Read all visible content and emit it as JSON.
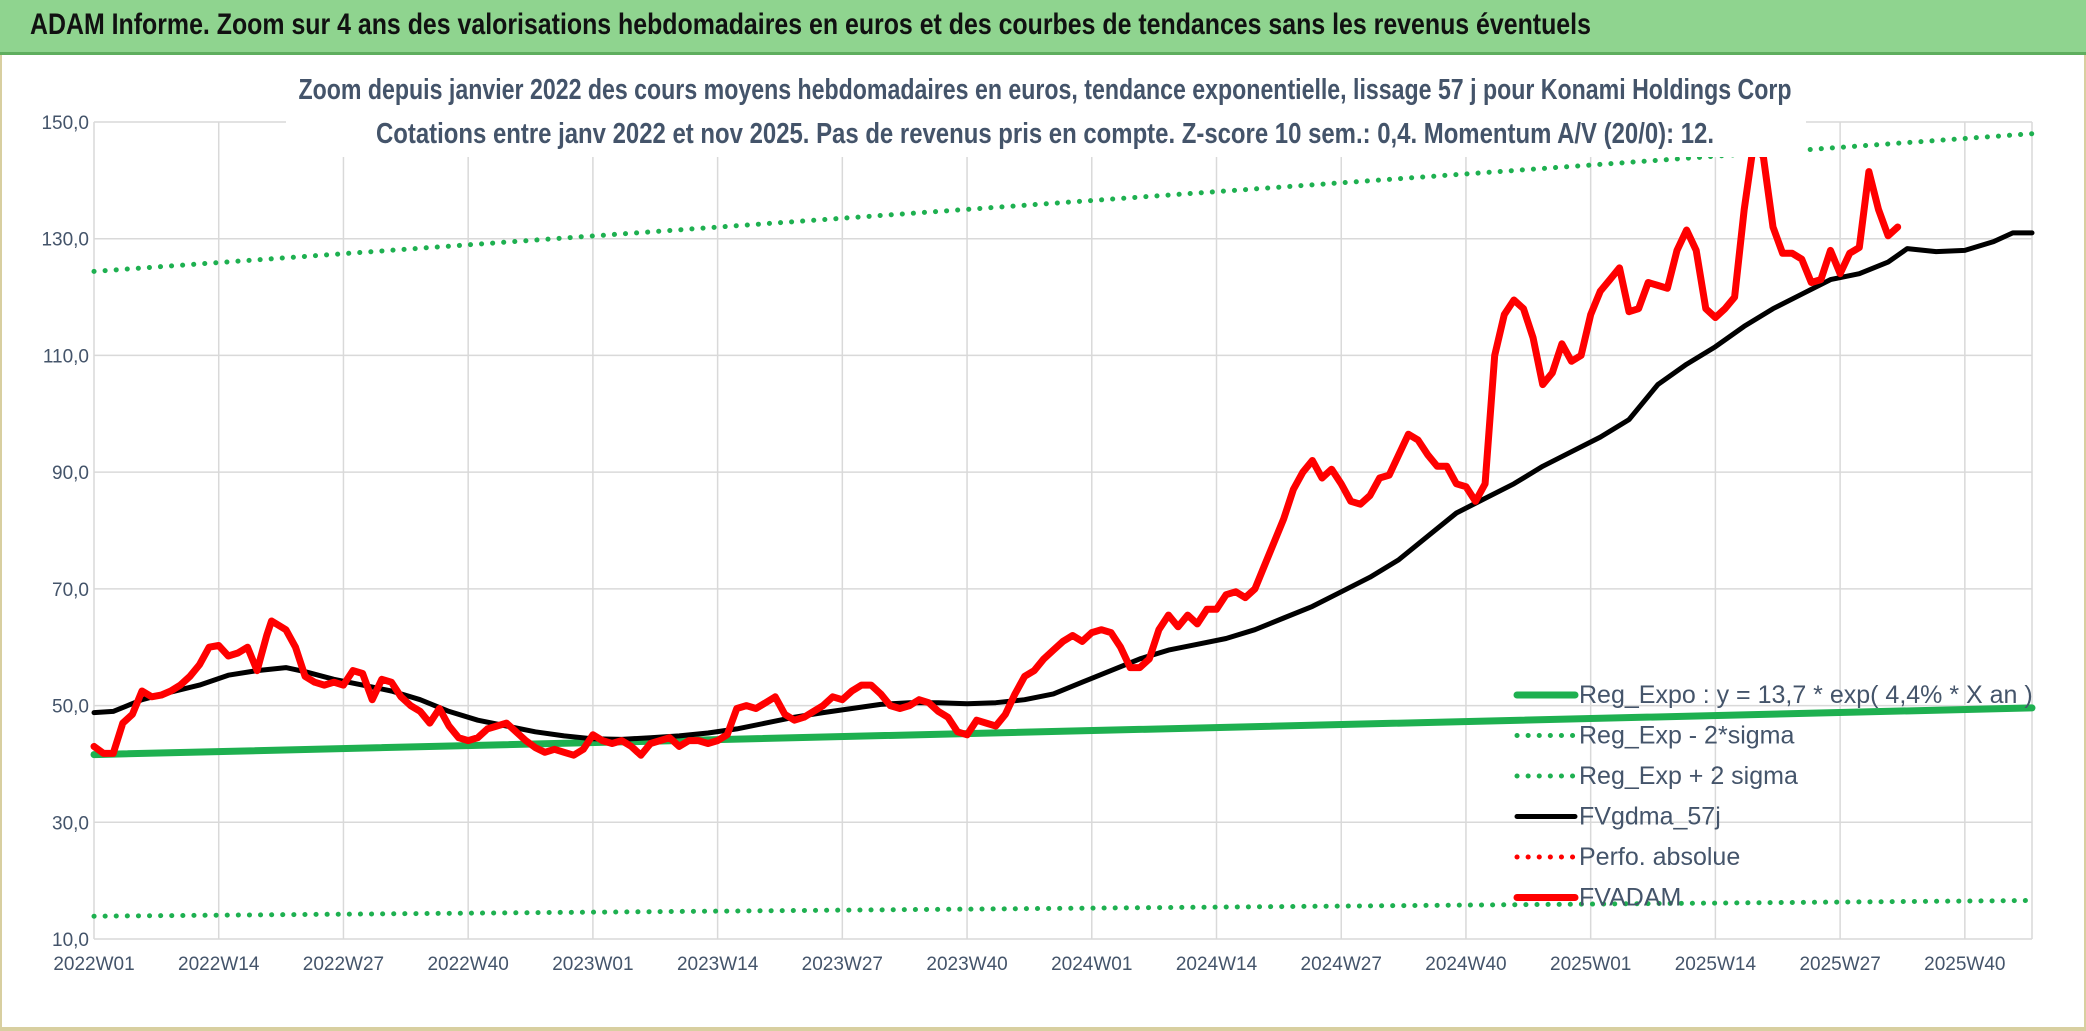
{
  "banner": {
    "title": "ADAM Informe. Zoom sur 4 ans des valorisations hebdomadaires en euros et des courbes de tendances sans les revenus éventuels"
  },
  "chart_data": {
    "type": "line",
    "title": "Zoom depuis janvier 2022 des cours moyens hebdomadaires en euros, tendance exponentielle, lissage 57 j pour Konami Holdings Corp",
    "subtitle": "Cotations entre janv 2022 et nov 2025. Pas de revenus pris en compte. Z-score 10 sem.: 0,4. Momentum A/V (20/0): 12.",
    "x_tick_labels": [
      "2022W01",
      "2022W14",
      "2022W27",
      "2022W40",
      "2023W01",
      "2023W14",
      "2023W27",
      "2023W40",
      "2024W01",
      "2024W14",
      "2024W27",
      "2024W40",
      "2025W01",
      "2025W14",
      "2025W27",
      "2025W40"
    ],
    "y_tick_labels": [
      "10,0",
      "30,0",
      "50,0",
      "70,0",
      "90,0",
      "110,0",
      "130,0",
      "150,0"
    ],
    "ylim": [
      10,
      150
    ],
    "grid": true,
    "legend_position": "bottom-right",
    "x_range_weeks": [
      0,
      202
    ],
    "series": [
      {
        "name": "Reg_Expo : y = 13,7 * exp( 4,4% *  X  an )",
        "color": "#1eb050",
        "style": "solid-thick",
        "points": [
          [
            0,
            41.6
          ],
          [
            202,
            49.6
          ]
        ]
      },
      {
        "name": "Reg_Exp - 2*sigma",
        "color": "#1eb050",
        "style": "dotted",
        "points": [
          [
            0,
            13.9
          ],
          [
            202,
            16.6
          ]
        ]
      },
      {
        "name": "Reg_Exp + 2 sigma",
        "color": "#1eb050",
        "style": "dotted",
        "points": [
          [
            0,
            124.4
          ],
          [
            202,
            148.0
          ]
        ]
      },
      {
        "name": "FVgdma_57j",
        "color": "#000000",
        "style": "solid",
        "points": [
          [
            0,
            48.8
          ],
          [
            2,
            49
          ],
          [
            5,
            51
          ],
          [
            8,
            52.3
          ],
          [
            11,
            53.5
          ],
          [
            14,
            55.2
          ],
          [
            17,
            56
          ],
          [
            20,
            56.5
          ],
          [
            22,
            55.8
          ],
          [
            25,
            54.5
          ],
          [
            28,
            53.5
          ],
          [
            31,
            52.5
          ],
          [
            34,
            51
          ],
          [
            37,
            49
          ],
          [
            40,
            47.5
          ],
          [
            43,
            46.5
          ],
          [
            46,
            45.5
          ],
          [
            49,
            44.8
          ],
          [
            52,
            44.3
          ],
          [
            55,
            44.2
          ],
          [
            58,
            44.5
          ],
          [
            61,
            44.8
          ],
          [
            64,
            45.3
          ],
          [
            67,
            46
          ],
          [
            70,
            47
          ],
          [
            73,
            48
          ],
          [
            76,
            48.8
          ],
          [
            79,
            49.5
          ],
          [
            82,
            50.2
          ],
          [
            85,
            50.5
          ],
          [
            88,
            50.5
          ],
          [
            91,
            50.3
          ],
          [
            94,
            50.5
          ],
          [
            97,
            51
          ],
          [
            100,
            52
          ],
          [
            103,
            54
          ],
          [
            106,
            56
          ],
          [
            109,
            58
          ],
          [
            112,
            59.5
          ],
          [
            115,
            60.5
          ],
          [
            118,
            61.5
          ],
          [
            121,
            63
          ],
          [
            124,
            65
          ],
          [
            127,
            67
          ],
          [
            130,
            69.5
          ],
          [
            133,
            72
          ],
          [
            136,
            75
          ],
          [
            139,
            79
          ],
          [
            142,
            83
          ],
          [
            145,
            85.5
          ],
          [
            148,
            88
          ],
          [
            151,
            91
          ],
          [
            154,
            93.5
          ],
          [
            157,
            96
          ],
          [
            160,
            99
          ],
          [
            163,
            105
          ],
          [
            166,
            108.5
          ],
          [
            169,
            111.5
          ],
          [
            172,
            115
          ],
          [
            175,
            118
          ],
          [
            178,
            120.5
          ],
          [
            181,
            123
          ],
          [
            184,
            124
          ],
          [
            187,
            126
          ],
          [
            189,
            128.3
          ],
          [
            192,
            127.8
          ],
          [
            195,
            128
          ],
          [
            198,
            129.5
          ],
          [
            200,
            131
          ],
          [
            202,
            131
          ]
        ]
      },
      {
        "name": "Perfo. absolue",
        "color": "#ff0000",
        "style": "dotted",
        "points": []
      },
      {
        "name": "FVADAM",
        "color": "#ff0000",
        "style": "solid-thick",
        "points": [
          [
            0,
            43
          ],
          [
            1,
            41.8
          ],
          [
            2,
            41.8
          ],
          [
            3,
            47
          ],
          [
            4,
            48.5
          ],
          [
            5,
            52.5
          ],
          [
            6,
            51.5
          ],
          [
            7,
            51.8
          ],
          [
            8,
            52.5
          ],
          [
            9,
            53.5
          ],
          [
            10,
            55
          ],
          [
            11,
            57
          ],
          [
            12,
            60
          ],
          [
            13,
            60.3
          ],
          [
            14,
            58.5
          ],
          [
            15,
            59
          ],
          [
            16,
            60
          ],
          [
            17,
            56
          ],
          [
            18,
            62
          ],
          [
            18.5,
            64.5
          ],
          [
            19,
            64
          ],
          [
            20,
            63
          ],
          [
            21,
            60
          ],
          [
            22,
            55
          ],
          [
            23,
            54
          ],
          [
            24,
            53.5
          ],
          [
            25,
            54
          ],
          [
            26,
            53.5
          ],
          [
            27,
            56
          ],
          [
            28,
            55.5
          ],
          [
            29,
            51
          ],
          [
            30,
            54.5
          ],
          [
            31,
            54
          ],
          [
            32,
            51.5
          ],
          [
            33,
            50
          ],
          [
            34,
            49
          ],
          [
            35,
            47
          ],
          [
            36,
            49.5
          ],
          [
            37,
            46.5
          ],
          [
            38,
            44.5
          ],
          [
            39,
            44
          ],
          [
            40,
            44.5
          ],
          [
            41,
            46
          ],
          [
            42,
            46.5
          ],
          [
            43,
            47
          ],
          [
            44,
            45.5
          ],
          [
            45,
            44
          ],
          [
            46,
            42.8
          ],
          [
            47,
            42
          ],
          [
            48,
            42.5
          ],
          [
            49,
            42
          ],
          [
            50,
            41.5
          ],
          [
            51,
            42.5
          ],
          [
            52,
            45
          ],
          [
            53,
            44
          ],
          [
            54,
            43.5
          ],
          [
            55,
            44
          ],
          [
            56,
            43
          ],
          [
            57,
            41.5
          ],
          [
            58,
            43.5
          ],
          [
            59,
            44
          ],
          [
            60,
            44.5
          ],
          [
            61,
            43
          ],
          [
            62,
            44
          ],
          [
            63,
            44
          ],
          [
            64,
            43.5
          ],
          [
            65,
            44
          ],
          [
            66,
            45
          ],
          [
            67,
            49.5
          ],
          [
            68,
            50
          ],
          [
            69,
            49.5
          ],
          [
            70,
            50.5
          ],
          [
            71,
            51.5
          ],
          [
            72,
            48.5
          ],
          [
            73,
            47.5
          ],
          [
            74,
            48
          ],
          [
            75,
            49
          ],
          [
            76,
            50
          ],
          [
            77,
            51.5
          ],
          [
            78,
            51
          ],
          [
            79,
            52.5
          ],
          [
            80,
            53.5
          ],
          [
            81,
            53.5
          ],
          [
            82,
            52
          ],
          [
            83,
            50
          ],
          [
            84,
            49.5
          ],
          [
            85,
            50
          ],
          [
            86,
            51
          ],
          [
            87,
            50.5
          ],
          [
            88,
            49
          ],
          [
            89,
            48
          ],
          [
            90,
            45.5
          ],
          [
            91,
            45
          ],
          [
            92,
            47.5
          ],
          [
            93,
            47
          ],
          [
            94,
            46.5
          ],
          [
            95,
            48.5
          ],
          [
            96,
            52
          ],
          [
            97,
            55
          ],
          [
            98,
            56
          ],
          [
            99,
            58
          ],
          [
            100,
            59.5
          ],
          [
            101,
            61
          ],
          [
            102,
            62
          ],
          [
            103,
            61
          ],
          [
            104,
            62.5
          ],
          [
            105,
            63
          ],
          [
            106,
            62.5
          ],
          [
            107,
            60
          ],
          [
            108,
            56.5
          ],
          [
            109,
            56.5
          ],
          [
            110,
            58
          ],
          [
            111,
            63
          ],
          [
            112,
            65.5
          ],
          [
            113,
            63.5
          ],
          [
            114,
            65.5
          ],
          [
            115,
            64
          ],
          [
            116,
            66.5
          ],
          [
            117,
            66.5
          ],
          [
            118,
            69
          ],
          [
            119,
            69.5
          ],
          [
            120,
            68.5
          ],
          [
            121,
            70
          ],
          [
            122,
            74
          ],
          [
            123,
            78
          ],
          [
            124,
            82
          ],
          [
            125,
            87
          ],
          [
            126,
            90
          ],
          [
            127,
            92
          ],
          [
            128,
            89
          ],
          [
            129,
            90.5
          ],
          [
            130,
            88
          ],
          [
            131,
            85
          ],
          [
            132,
            84.5
          ],
          [
            133,
            86
          ],
          [
            134,
            89
          ],
          [
            135,
            89.5
          ],
          [
            136,
            93
          ],
          [
            137,
            96.5
          ],
          [
            138,
            95.5
          ],
          [
            139,
            93
          ],
          [
            140,
            91
          ],
          [
            141,
            91
          ],
          [
            142,
            88
          ],
          [
            143,
            87.5
          ],
          [
            144,
            85
          ],
          [
            145,
            88
          ],
          [
            146,
            110
          ],
          [
            147,
            117
          ],
          [
            148,
            119.5
          ],
          [
            149,
            118
          ],
          [
            150,
            113
          ],
          [
            151,
            105
          ],
          [
            152,
            107
          ],
          [
            153,
            112
          ],
          [
            154,
            109
          ],
          [
            155,
            110
          ],
          [
            156,
            117
          ],
          [
            157,
            121
          ],
          [
            158,
            123
          ],
          [
            159,
            125
          ],
          [
            160,
            117.5
          ],
          [
            161,
            118
          ],
          [
            162,
            122.5
          ],
          [
            163,
            122
          ],
          [
            164,
            121.5
          ],
          [
            165,
            128
          ],
          [
            166,
            131.5
          ],
          [
            167,
            128
          ],
          [
            168,
            118
          ],
          [
            169,
            116.5
          ],
          [
            170,
            118
          ],
          [
            171,
            120
          ],
          [
            172,
            135
          ],
          [
            173,
            146.5
          ],
          [
            174,
            144
          ],
          [
            175,
            132
          ],
          [
            176,
            127.5
          ],
          [
            177,
            127.5
          ],
          [
            178,
            126.5
          ],
          [
            179,
            122.5
          ],
          [
            180,
            123
          ],
          [
            181,
            128
          ],
          [
            182,
            124
          ],
          [
            183,
            127.5
          ],
          [
            184,
            128.5
          ],
          [
            185,
            141.5
          ],
          [
            186,
            135
          ],
          [
            187,
            130.5
          ],
          [
            188,
            132
          ]
        ]
      }
    ]
  }
}
